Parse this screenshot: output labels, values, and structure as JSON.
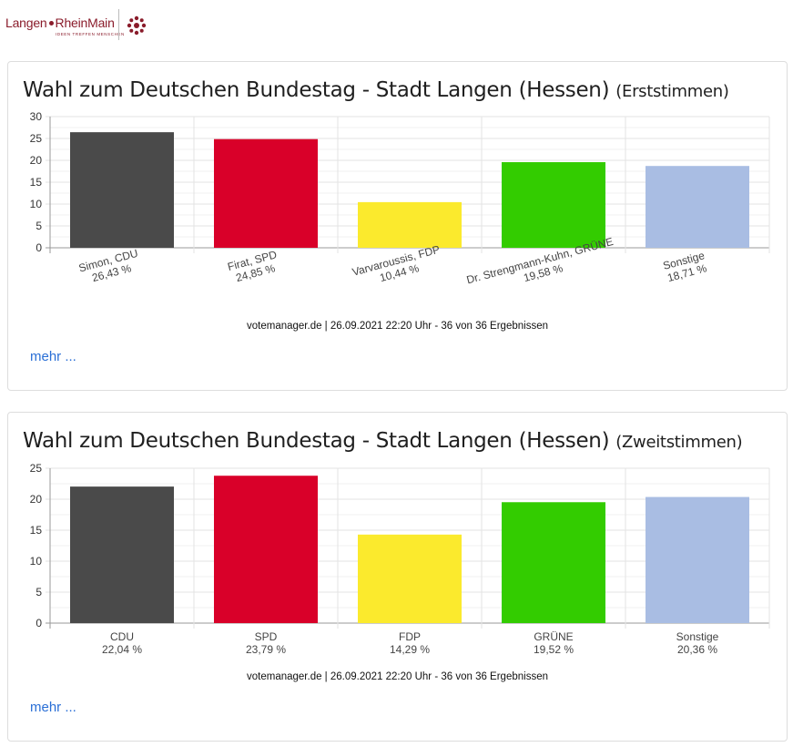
{
  "header": {
    "logo_left": "Langen",
    "logo_right": "RheinMain",
    "logo_tagline": "IDEEN TREFFEN MENSCHEN"
  },
  "colors": {
    "CDU": "#4a4a4a",
    "SPD": "#d90029",
    "FDP": "#fbea2d",
    "GRÜNE": "#33cc00",
    "Sonstige": "#a9bde3",
    "link": "#2a6fd6"
  },
  "panels": [
    {
      "title": "Wahl zum Deutschen Bundestag - Stadt Langen (Hessen)",
      "subtitle": "(Erststimmen)",
      "source": "votemanager.de | 26.09.2021 22:20 Uhr - 36 von 36 Ergebnissen",
      "more": "mehr ..."
    },
    {
      "title": "Wahl zum Deutschen Bundestag - Stadt Langen (Hessen)",
      "subtitle": "(Zweitstimmen)",
      "source": "votemanager.de | 26.09.2021 22:20 Uhr - 36 von 36 Ergebnissen",
      "more": "mehr ..."
    }
  ],
  "chart_data": [
    {
      "type": "bar",
      "categories": [
        "Simon, CDU",
        "Firat, SPD",
        "Varvaroussis, FDP",
        "Dr. Strengmann-Kuhn, GRÜNE",
        "Sonstige"
      ],
      "value_labels": [
        "26,43 %",
        "24,85 %",
        "10,44 %",
        "19,58 %",
        "18,71 %"
      ],
      "values": [
        26.43,
        24.85,
        10.44,
        19.58,
        18.71
      ],
      "bar_colors": [
        "#4a4a4a",
        "#d90029",
        "#fbea2d",
        "#33cc00",
        "#a9bde3"
      ],
      "ylim": [
        0,
        30
      ],
      "yticks": [
        0,
        5,
        10,
        15,
        20,
        25,
        30
      ],
      "label_rotation": -15,
      "grid": true
    },
    {
      "type": "bar",
      "categories": [
        "CDU",
        "SPD",
        "FDP",
        "GRÜNE",
        "Sonstige"
      ],
      "value_labels": [
        "22,04 %",
        "23,79 %",
        "14,29 %",
        "19,52 %",
        "20,36 %"
      ],
      "values": [
        22.04,
        23.79,
        14.29,
        19.52,
        20.36
      ],
      "bar_colors": [
        "#4a4a4a",
        "#d90029",
        "#fbea2d",
        "#33cc00",
        "#a9bde3"
      ],
      "ylim": [
        0,
        25
      ],
      "yticks": [
        0,
        5,
        10,
        15,
        20,
        25
      ],
      "label_rotation": 0,
      "grid": true
    }
  ]
}
